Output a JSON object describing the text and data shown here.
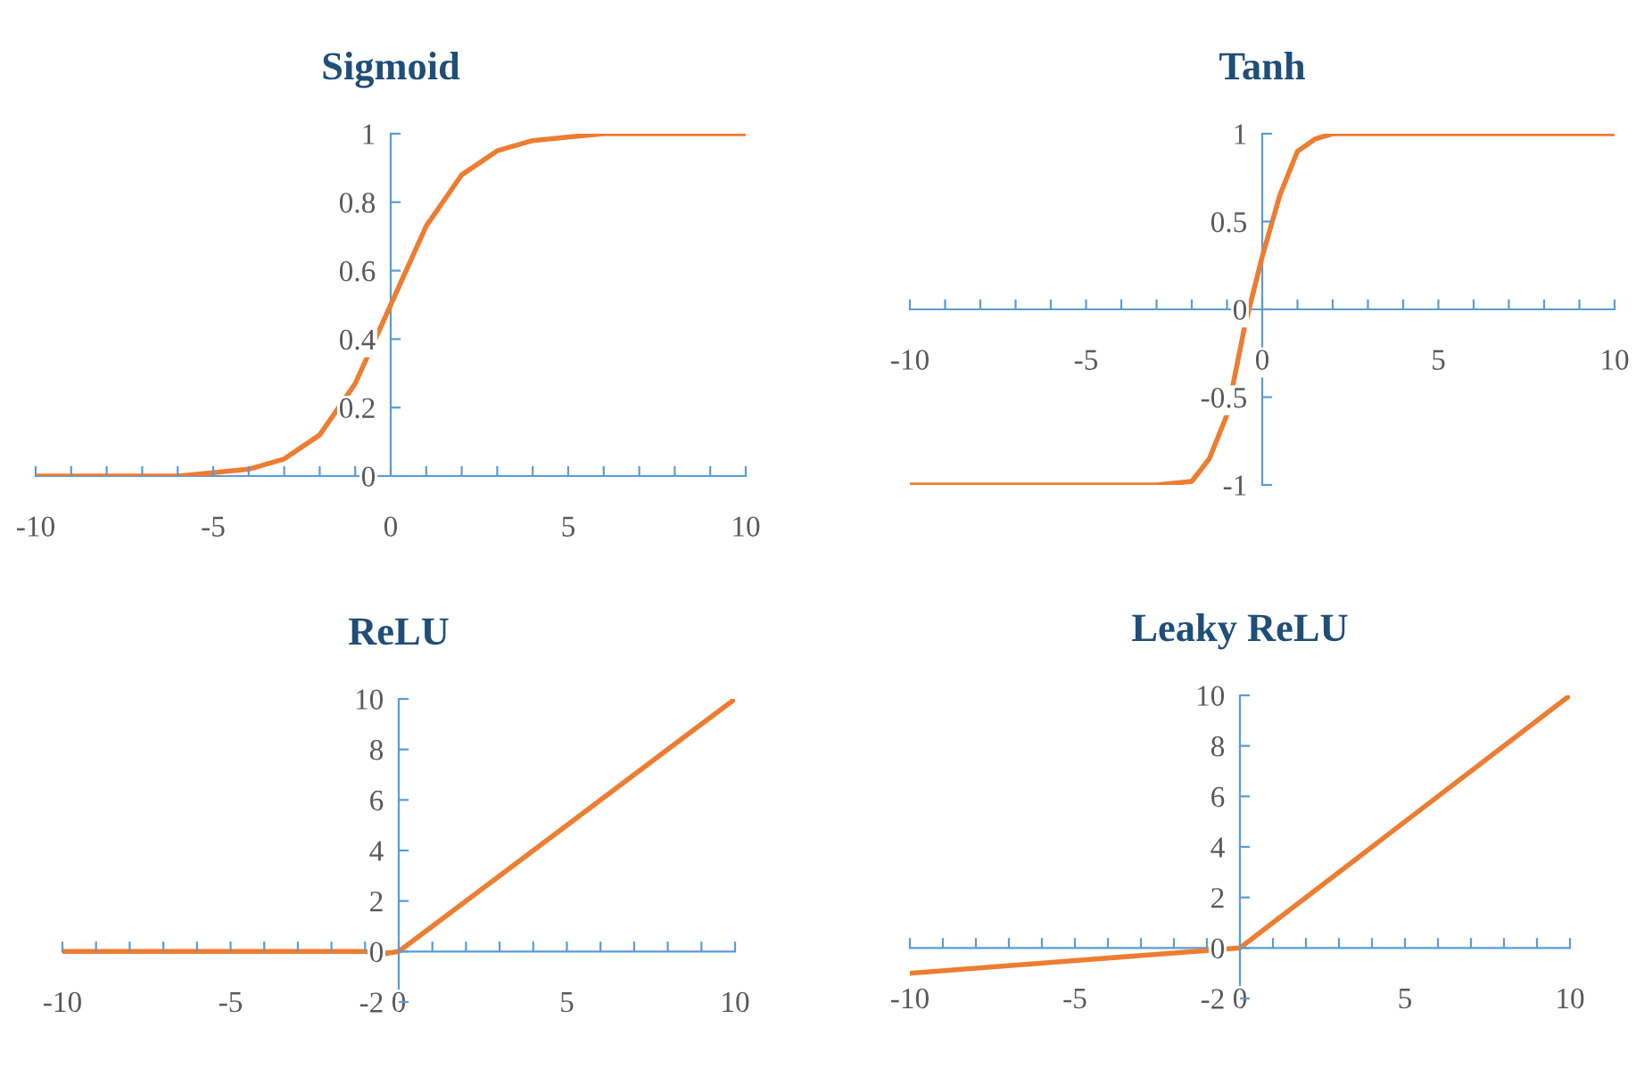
{
  "chart_data": [
    {
      "type": "line",
      "title": "Sigmoid",
      "x": [
        -10,
        -9,
        -8,
        -7,
        -6,
        -5,
        -4,
        -3,
        -2,
        -1,
        0,
        1,
        2,
        3,
        4,
        5,
        6,
        7,
        8,
        9,
        10
      ],
      "series": [
        {
          "color": "#ed7d31",
          "values": [
            0,
            0,
            0,
            0,
            0,
            0.01,
            0.02,
            0.05,
            0.12,
            0.27,
            0.5,
            0.73,
            0.88,
            0.95,
            0.98,
            0.99,
            1,
            1,
            1,
            1,
            1
          ]
        }
      ],
      "xlim": [
        -10,
        10
      ],
      "ylim": [
        0,
        1
      ],
      "xticks": [
        -10,
        {
          "value": -9,
          "label": null
        },
        {
          "value": -8,
          "label": null
        },
        {
          "value": -7,
          "label": null
        },
        {
          "value": -6,
          "label": null
        },
        -5,
        {
          "value": -4,
          "label": null
        },
        {
          "value": -3,
          "label": null
        },
        {
          "value": -2,
          "label": null
        },
        {
          "value": -1,
          "label": null
        },
        0,
        {
          "value": 1,
          "label": null
        },
        {
          "value": 2,
          "label": null
        },
        {
          "value": 3,
          "label": null
        },
        {
          "value": 4,
          "label": null
        },
        5,
        {
          "value": 6,
          "label": null
        },
        {
          "value": 7,
          "label": null
        },
        {
          "value": 8,
          "label": null
        },
        {
          "value": 9,
          "label": null
        },
        10
      ],
      "yticks": [
        0,
        0.2,
        0.4,
        0.6,
        0.8,
        1
      ]
    },
    {
      "type": "line",
      "title": "Tanh",
      "x": [
        -10,
        -5,
        -3,
        -2,
        -1.5,
        -1,
        -0.5,
        0,
        0.5,
        1,
        1.5,
        2,
        5,
        10
      ],
      "series": [
        {
          "color": "#ed7d31",
          "values": [
            -1,
            -1,
            -1,
            -0.98,
            -0.85,
            -0.6,
            -0.1,
            0.3,
            0.65,
            0.9,
            0.97,
            1,
            1,
            1
          ]
        }
      ],
      "xlim": [
        -10,
        10
      ],
      "ylim": [
        -1,
        1
      ],
      "xticks": [
        -10,
        {
          "value": -9,
          "label": null
        },
        {
          "value": -8,
          "label": null
        },
        {
          "value": -7,
          "label": null
        },
        {
          "value": -6,
          "label": null
        },
        -5,
        {
          "value": -4,
          "label": null
        },
        {
          "value": -3,
          "label": null
        },
        {
          "value": -2,
          "label": null
        },
        {
          "value": -1,
          "label": null
        },
        0,
        {
          "value": 1,
          "label": null
        },
        {
          "value": 2,
          "label": null
        },
        {
          "value": 3,
          "label": null
        },
        {
          "value": 4,
          "label": null
        },
        5,
        {
          "value": 6,
          "label": null
        },
        {
          "value": 7,
          "label": null
        },
        {
          "value": 8,
          "label": null
        },
        {
          "value": 9,
          "label": null
        },
        10
      ],
      "yticks": [
        -1,
        -0.5,
        0,
        0.5,
        1
      ]
    },
    {
      "type": "line",
      "title": "ReLU",
      "x": [
        -10,
        -5,
        -1,
        -0.5,
        0,
        1,
        5,
        10
      ],
      "series": [
        {
          "color": "#ed7d31",
          "values": [
            0,
            0,
            0,
            -0.1,
            0,
            1,
            5,
            10
          ]
        }
      ],
      "xlim": [
        -10,
        10
      ],
      "ylim": [
        -2,
        10
      ],
      "xticks": [
        -10,
        {
          "value": -9,
          "label": null
        },
        {
          "value": -8,
          "label": null
        },
        {
          "value": -7,
          "label": null
        },
        {
          "value": -6,
          "label": null
        },
        -5,
        {
          "value": -4,
          "label": null
        },
        {
          "value": -3,
          "label": null
        },
        {
          "value": -2,
          "label": null
        },
        {
          "value": -1,
          "label": null
        },
        0,
        {
          "value": 1,
          "label": null
        },
        {
          "value": 2,
          "label": null
        },
        {
          "value": 3,
          "label": null
        },
        {
          "value": 4,
          "label": null
        },
        5,
        {
          "value": 6,
          "label": null
        },
        {
          "value": 7,
          "label": null
        },
        {
          "value": 8,
          "label": null
        },
        {
          "value": 9,
          "label": null
        },
        10
      ],
      "yticks": [
        -2,
        0,
        2,
        4,
        6,
        8,
        10
      ]
    },
    {
      "type": "line",
      "title": "Leaky ReLU",
      "x": [
        -10,
        -5,
        -1,
        0,
        1,
        5,
        10
      ],
      "series": [
        {
          "color": "#ed7d31",
          "values": [
            -1,
            -0.5,
            -0.1,
            0,
            1,
            5,
            10
          ]
        }
      ],
      "xlim": [
        -10,
        10
      ],
      "ylim": [
        -2,
        10
      ],
      "xticks": [
        -10,
        {
          "value": -9,
          "label": null
        },
        {
          "value": -8,
          "label": null
        },
        {
          "value": -7,
          "label": null
        },
        {
          "value": -6,
          "label": null
        },
        -5,
        {
          "value": -4,
          "label": null
        },
        {
          "value": -3,
          "label": null
        },
        {
          "value": -2,
          "label": null
        },
        {
          "value": -1,
          "label": null
        },
        0,
        {
          "value": 1,
          "label": null
        },
        {
          "value": 2,
          "label": null
        },
        {
          "value": 3,
          "label": null
        },
        {
          "value": 4,
          "label": null
        },
        5,
        {
          "value": 6,
          "label": null
        },
        {
          "value": 7,
          "label": null
        },
        {
          "value": 8,
          "label": null
        },
        {
          "value": 9,
          "label": null
        },
        10
      ],
      "yticks": [
        -2,
        0,
        2,
        4,
        6,
        8,
        10
      ]
    }
  ]
}
